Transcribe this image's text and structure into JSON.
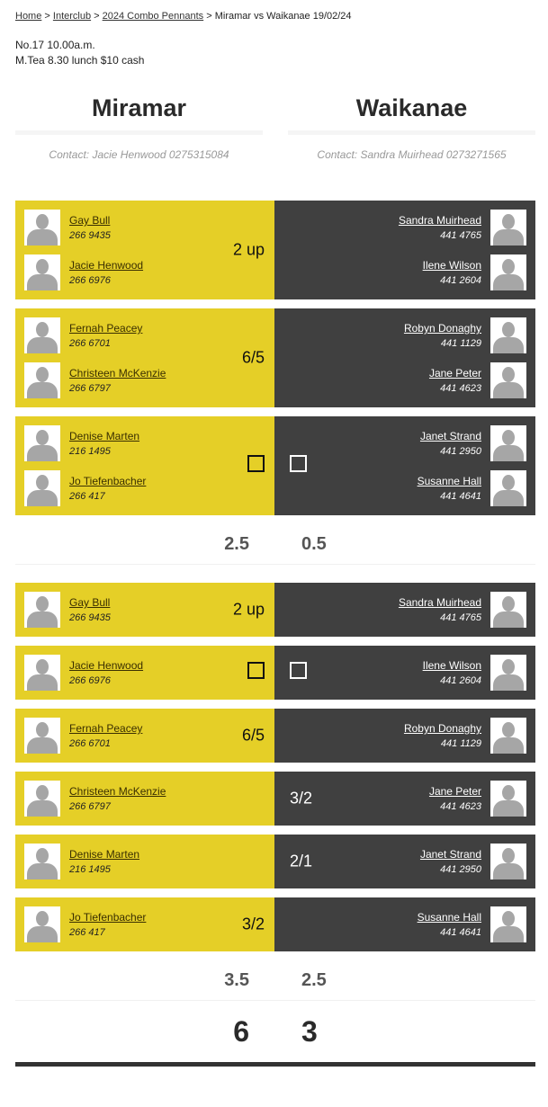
{
  "breadcrumb": {
    "items": [
      "Home",
      "Interclub",
      "2024 Combo Pennants"
    ],
    "current": "Miramar vs Waikanae 19/02/24"
  },
  "info": [
    "No.17 10.00a.m.",
    "M.Tea 8.30 lunch $10 cash"
  ],
  "home": {
    "name": "Miramar",
    "contact": "Contact: Jacie Henwood 0275315084"
  },
  "away": {
    "name": "Waikanae",
    "contact": "Contact: Sandra Muirhead 0273271565"
  },
  "colors": {
    "home": "#e5cf27",
    "away": "#404040"
  },
  "pairs": [
    {
      "home": [
        {
          "name": "Gay Bull",
          "phone": "266 9435"
        },
        {
          "name": "Jacie Henwood",
          "phone": "266 6976"
        }
      ],
      "away": [
        {
          "name": "Sandra Muirhead",
          "phone": "441 4765"
        },
        {
          "name": "Ilene Wilson",
          "phone": "441 2604"
        }
      ],
      "home_score": "2 up",
      "away_score": ""
    },
    {
      "home": [
        {
          "name": "Fernah Peacey",
          "phone": "266 6701"
        },
        {
          "name": "Christeen McKenzie",
          "phone": "266 6797"
        }
      ],
      "away": [
        {
          "name": "Robyn Donaghy",
          "phone": "441 1129"
        },
        {
          "name": "Jane Peter",
          "phone": "441 4623"
        }
      ],
      "home_score": "6/5",
      "away_score": ""
    },
    {
      "home": [
        {
          "name": "Denise Marten",
          "phone": "216 1495"
        },
        {
          "name": "Jo Tiefenbacher",
          "phone": "266 417"
        }
      ],
      "away": [
        {
          "name": "Janet Strand",
          "phone": "441 2950"
        },
        {
          "name": "Susanne Hall",
          "phone": "441 4641"
        }
      ],
      "halved": true
    }
  ],
  "pairs_subtotal": {
    "home": "2.5",
    "away": "0.5"
  },
  "singles": [
    {
      "home": [
        {
          "name": "Gay Bull",
          "phone": "266 9435"
        }
      ],
      "away": [
        {
          "name": "Sandra Muirhead",
          "phone": "441 4765"
        }
      ],
      "home_score": "2 up",
      "away_score": ""
    },
    {
      "home": [
        {
          "name": "Jacie Henwood",
          "phone": "266 6976"
        }
      ],
      "away": [
        {
          "name": "Ilene Wilson",
          "phone": "441 2604"
        }
      ],
      "halved": true
    },
    {
      "home": [
        {
          "name": "Fernah Peacey",
          "phone": "266 6701"
        }
      ],
      "away": [
        {
          "name": "Robyn Donaghy",
          "phone": "441 1129"
        }
      ],
      "home_score": "6/5",
      "away_score": ""
    },
    {
      "home": [
        {
          "name": "Christeen McKenzie",
          "phone": "266 6797"
        }
      ],
      "away": [
        {
          "name": "Jane Peter",
          "phone": "441 4623"
        }
      ],
      "home_score": "",
      "away_score": "3/2"
    },
    {
      "home": [
        {
          "name": "Denise Marten",
          "phone": "216 1495"
        }
      ],
      "away": [
        {
          "name": "Janet Strand",
          "phone": "441 2950"
        }
      ],
      "home_score": "",
      "away_score": "2/1"
    },
    {
      "home": [
        {
          "name": "Jo Tiefenbacher",
          "phone": "266 417"
        }
      ],
      "away": [
        {
          "name": "Susanne Hall",
          "phone": "441 4641"
        }
      ],
      "home_score": "3/2",
      "away_score": ""
    }
  ],
  "singles_subtotal": {
    "home": "3.5",
    "away": "2.5"
  },
  "total": {
    "home": "6",
    "away": "3"
  }
}
